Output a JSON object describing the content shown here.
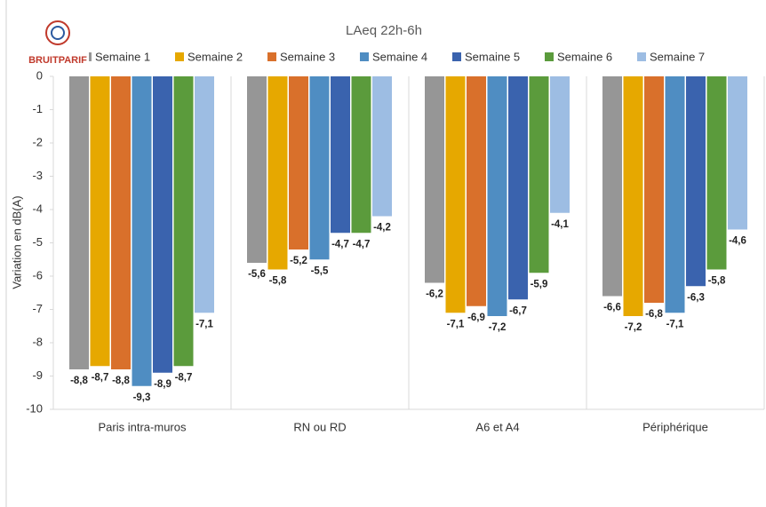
{
  "logo_text": "BRUITPARIF",
  "chart_data": {
    "type": "bar",
    "title": "LAeq 22h-6h",
    "y_label": "Variation en dB(A)",
    "categories": [
      "Paris intra-muros",
      "RN ou RD",
      "A6 et A4",
      "Périphérique"
    ],
    "series": [
      {
        "name": "Semaine 1",
        "color": "#969696",
        "values": [
          -8.8,
          -5.6,
          -6.2,
          -6.6
        ],
        "value_labels": [
          "-8,8",
          "-5,6",
          "-6,2",
          "-6,6"
        ]
      },
      {
        "name": "Semaine 2",
        "color": "#e6a800",
        "values": [
          -8.7,
          -5.8,
          -7.1,
          -7.2
        ],
        "value_labels": [
          "-8,7",
          "-5,8",
          "-7,1",
          "-7,2"
        ]
      },
      {
        "name": "Semaine 3",
        "color": "#d9702b",
        "values": [
          -8.8,
          -5.2,
          -6.9,
          -6.8
        ],
        "value_labels": [
          "-8,8",
          "-5,2",
          "-6,9",
          "-6,8"
        ]
      },
      {
        "name": "Semaine 4",
        "color": "#4f8dc2",
        "values": [
          -9.3,
          -5.5,
          -7.2,
          -7.1
        ],
        "value_labels": [
          "-9,3",
          "-5,5",
          "-7,2",
          "-7,1"
        ]
      },
      {
        "name": "Semaine 5",
        "color": "#3a63ae",
        "values": [
          -8.9,
          -4.7,
          -6.7,
          -6.3
        ],
        "value_labels": [
          "-8,9",
          "-4,7",
          "-6,7",
          "-6,3"
        ]
      },
      {
        "name": "Semaine 6",
        "color": "#5b9b3c",
        "values": [
          -8.7,
          -4.7,
          -5.9,
          -5.8
        ],
        "value_labels": [
          "-8,7",
          "-4,7",
          "-5,9",
          "-5,8"
        ]
      },
      {
        "name": "Semaine 7",
        "color": "#9dbde3",
        "values": [
          -7.1,
          -4.2,
          -4.1,
          -4.6
        ],
        "value_labels": [
          "-7,1",
          "-4,2",
          "-4,1",
          "-4,6"
        ]
      }
    ],
    "ylim": [
      -10,
      0
    ],
    "yticks": [
      0,
      -1,
      -2,
      -3,
      -4,
      -5,
      -6,
      -7,
      -8,
      -9,
      -10
    ],
    "grid": false
  }
}
